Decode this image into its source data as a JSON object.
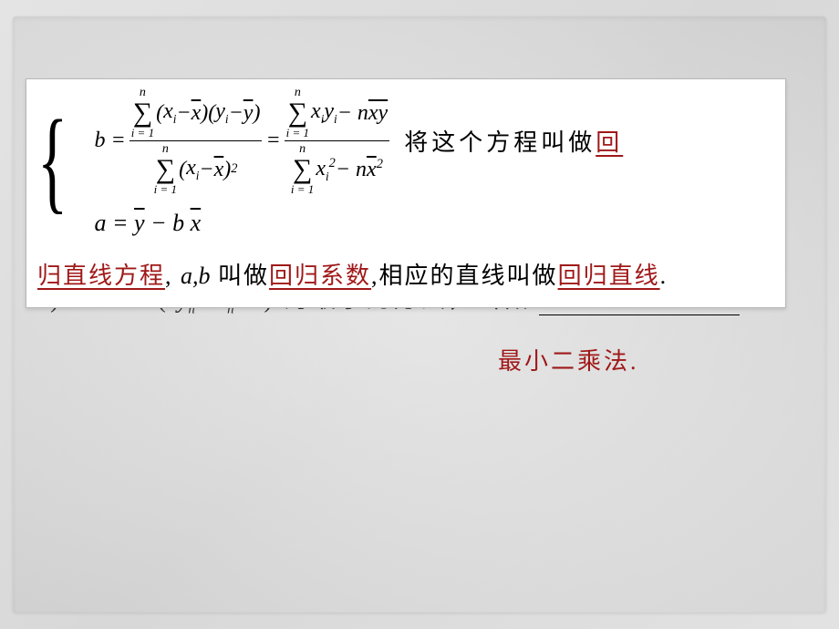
{
  "slide": {
    "background_gradient": [
      "#e4e4e4",
      "#d8d8d8",
      "#e2e2e2"
    ],
    "overlay": {
      "bg": "#ffffff",
      "border": "#b8b8b8"
    },
    "colors": {
      "text": "#000000",
      "red": "#a01818"
    },
    "fonts": {
      "cn": "SimSun",
      "math": "Times New Roman",
      "body_size_pt": 20,
      "math_size_pt": 18
    }
  },
  "formula": {
    "b_left_numerator_sum_upper": "n",
    "b_left_numerator_sum_lower": "i = 1",
    "b_left_numerator_expr_open": "(",
    "b_left_numerator_xi": "x",
    "b_left_numerator_xi_sub": "i",
    "b_left_numerator_minus1": " − ",
    "b_left_numerator_xbar": "x",
    "b_left_numerator_expr_mid": ")(",
    "b_left_numerator_yi": "y",
    "b_left_numerator_yi_sub": "i",
    "b_left_numerator_minus2": " − ",
    "b_left_numerator_ybar": "y",
    "b_left_numerator_expr_close": ")",
    "b_left_denominator_sum_upper": "n",
    "b_left_denominator_sum_lower": "i = 1",
    "b_left_denominator_open": "(",
    "b_left_denominator_xi": "x",
    "b_left_denominator_xi_sub": "i",
    "b_left_denominator_minus": " − ",
    "b_left_denominator_xbar": "x",
    "b_left_denominator_close": ")",
    "b_left_denominator_sq": "2",
    "eq_b_lhs": "b = ",
    "eq_sign": " = ",
    "b_right_numerator_sum_upper": "n",
    "b_right_numerator_sum_lower": "i = 1",
    "b_right_numerator_xi": "x",
    "b_right_numerator_xi_sub": "i",
    "b_right_numerator_yi": "y",
    "b_right_numerator_yi_sub": "i",
    "b_right_numerator_minus": " − n ",
    "b_right_numerator_xybar": "xy",
    "b_right_denominator_sum_upper": "n",
    "b_right_denominator_sum_lower": "i = 1",
    "b_right_denominator_xi": "x",
    "b_right_denominator_xi_sub": "i",
    "b_right_denominator_xi_sup": "2",
    "b_right_denominator_minus": " − n ",
    "b_right_denominator_xbar": "x",
    "b_right_denominator_xbar_sup": "2",
    "eq_a_full_1": "a = ",
    "eq_a_ybar": "y",
    "eq_a_mid": " − b ",
    "eq_a_xbar": "x"
  },
  "text": {
    "trailing_cn_part1": "将这个方程叫做",
    "trailing_red_part1": "回",
    "line2_red_prefix": "归直线方程",
    "line2_mid1": ",",
    "line2_ab_a": "a",
    "line2_ab_comma": ",",
    "line2_ab_b": "b",
    "line2_mid2": " 叫做",
    "line2_red_mid": "回归系数",
    "line2_mid3": ",相应的直线叫做",
    "line2_red_end": "回归直线",
    "line2_period": ".",
    "below_prefix_a": "a",
    "below_text1": ") + … + (",
    "below_yn": "y",
    "below_n_sub": "n",
    "below_bx": "   bx",
    "below_n_sub2": "n",
    "below_a2": "   a",
    "below_text2": ") 为最小的方法，叫做",
    "red_answer": "最小二乘法."
  }
}
